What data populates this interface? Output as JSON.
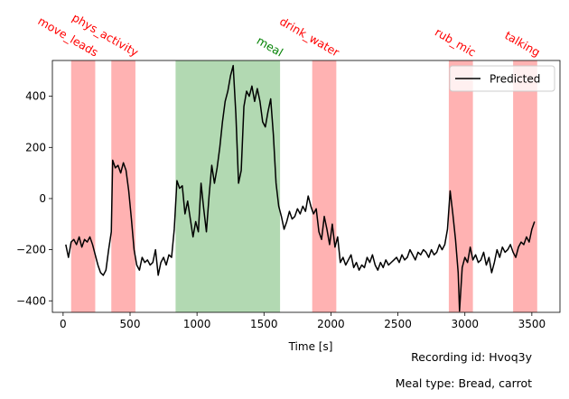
{
  "chart_data": {
    "type": "line",
    "xlabel": "Time [s]",
    "ylabel": "",
    "xlim": [
      -80,
      3710
    ],
    "ylim": [
      -445,
      540
    ],
    "x_ticks": [
      0,
      500,
      1000,
      1500,
      2000,
      2500,
      3000,
      3500
    ],
    "y_ticks": [
      -400,
      -200,
      0,
      200,
      400
    ],
    "grid": false,
    "legend": {
      "placement": "top-right",
      "entries": [
        {
          "label": "Predicted",
          "color": "#000000"
        }
      ]
    },
    "series": [
      {
        "name": "Predicted",
        "color": "#000000",
        "points": [
          [
            20,
            -180
          ],
          [
            40,
            -230
          ],
          [
            60,
            -170
          ],
          [
            80,
            -160
          ],
          [
            100,
            -180
          ],
          [
            120,
            -150
          ],
          [
            140,
            -190
          ],
          [
            160,
            -160
          ],
          [
            180,
            -170
          ],
          [
            200,
            -150
          ],
          [
            220,
            -180
          ],
          [
            240,
            -220
          ],
          [
            260,
            -260
          ],
          [
            280,
            -290
          ],
          [
            300,
            -300
          ],
          [
            320,
            -280
          ],
          [
            340,
            -200
          ],
          [
            360,
            -130
          ],
          [
            370,
            150
          ],
          [
            390,
            120
          ],
          [
            410,
            130
          ],
          [
            430,
            100
          ],
          [
            450,
            140
          ],
          [
            470,
            110
          ],
          [
            490,
            30
          ],
          [
            510,
            -80
          ],
          [
            530,
            -200
          ],
          [
            550,
            -260
          ],
          [
            570,
            -280
          ],
          [
            590,
            -230
          ],
          [
            610,
            -250
          ],
          [
            630,
            -240
          ],
          [
            650,
            -260
          ],
          [
            670,
            -250
          ],
          [
            690,
            -200
          ],
          [
            710,
            -300
          ],
          [
            730,
            -250
          ],
          [
            750,
            -230
          ],
          [
            770,
            -260
          ],
          [
            790,
            -220
          ],
          [
            810,
            -230
          ],
          [
            830,
            -120
          ],
          [
            850,
            70
          ],
          [
            870,
            40
          ],
          [
            890,
            50
          ],
          [
            910,
            -60
          ],
          [
            930,
            -10
          ],
          [
            950,
            -80
          ],
          [
            970,
            -150
          ],
          [
            990,
            -90
          ],
          [
            1010,
            -130
          ],
          [
            1030,
            60
          ],
          [
            1050,
            -40
          ],
          [
            1070,
            -130
          ],
          [
            1090,
            10
          ],
          [
            1110,
            130
          ],
          [
            1130,
            60
          ],
          [
            1150,
            120
          ],
          [
            1170,
            200
          ],
          [
            1190,
            300
          ],
          [
            1210,
            380
          ],
          [
            1230,
            420
          ],
          [
            1250,
            480
          ],
          [
            1270,
            520
          ],
          [
            1290,
            330
          ],
          [
            1310,
            60
          ],
          [
            1330,
            110
          ],
          [
            1350,
            360
          ],
          [
            1370,
            420
          ],
          [
            1390,
            400
          ],
          [
            1410,
            440
          ],
          [
            1430,
            380
          ],
          [
            1450,
            430
          ],
          [
            1470,
            380
          ],
          [
            1490,
            300
          ],
          [
            1510,
            280
          ],
          [
            1530,
            340
          ],
          [
            1550,
            390
          ],
          [
            1570,
            250
          ],
          [
            1590,
            60
          ],
          [
            1610,
            -30
          ],
          [
            1630,
            -70
          ],
          [
            1650,
            -120
          ],
          [
            1670,
            -90
          ],
          [
            1690,
            -50
          ],
          [
            1710,
            -80
          ],
          [
            1730,
            -70
          ],
          [
            1750,
            -40
          ],
          [
            1770,
            -60
          ],
          [
            1790,
            -30
          ],
          [
            1810,
            -50
          ],
          [
            1830,
            10
          ],
          [
            1850,
            -30
          ],
          [
            1870,
            -60
          ],
          [
            1890,
            -40
          ],
          [
            1910,
            -130
          ],
          [
            1930,
            -160
          ],
          [
            1950,
            -70
          ],
          [
            1970,
            -120
          ],
          [
            1990,
            -180
          ],
          [
            2010,
            -100
          ],
          [
            2030,
            -190
          ],
          [
            2050,
            -150
          ],
          [
            2070,
            -250
          ],
          [
            2090,
            -230
          ],
          [
            2110,
            -260
          ],
          [
            2130,
            -240
          ],
          [
            2150,
            -220
          ],
          [
            2170,
            -270
          ],
          [
            2190,
            -250
          ],
          [
            2210,
            -280
          ],
          [
            2230,
            -260
          ],
          [
            2250,
            -270
          ],
          [
            2270,
            -230
          ],
          [
            2290,
            -250
          ],
          [
            2310,
            -220
          ],
          [
            2330,
            -260
          ],
          [
            2350,
            -280
          ],
          [
            2370,
            -250
          ],
          [
            2390,
            -270
          ],
          [
            2410,
            -240
          ],
          [
            2430,
            -260
          ],
          [
            2450,
            -250
          ],
          [
            2470,
            -240
          ],
          [
            2490,
            -230
          ],
          [
            2510,
            -250
          ],
          [
            2530,
            -220
          ],
          [
            2550,
            -240
          ],
          [
            2570,
            -230
          ],
          [
            2590,
            -200
          ],
          [
            2610,
            -220
          ],
          [
            2630,
            -240
          ],
          [
            2650,
            -210
          ],
          [
            2670,
            -220
          ],
          [
            2690,
            -200
          ],
          [
            2710,
            -210
          ],
          [
            2730,
            -230
          ],
          [
            2750,
            -200
          ],
          [
            2770,
            -220
          ],
          [
            2790,
            -210
          ],
          [
            2810,
            -180
          ],
          [
            2830,
            -200
          ],
          [
            2850,
            -180
          ],
          [
            2870,
            -120
          ],
          [
            2890,
            30
          ],
          [
            2910,
            -60
          ],
          [
            2930,
            -160
          ],
          [
            2950,
            -290
          ],
          [
            2960,
            -440
          ],
          [
            2980,
            -270
          ],
          [
            3000,
            -230
          ],
          [
            3020,
            -250
          ],
          [
            3040,
            -190
          ],
          [
            3060,
            -240
          ],
          [
            3080,
            -220
          ],
          [
            3100,
            -250
          ],
          [
            3120,
            -240
          ],
          [
            3140,
            -210
          ],
          [
            3160,
            -260
          ],
          [
            3180,
            -230
          ],
          [
            3200,
            -290
          ],
          [
            3220,
            -250
          ],
          [
            3240,
            -200
          ],
          [
            3260,
            -230
          ],
          [
            3280,
            -190
          ],
          [
            3300,
            -210
          ],
          [
            3320,
            -200
          ],
          [
            3340,
            -180
          ],
          [
            3360,
            -210
          ],
          [
            3380,
            -230
          ],
          [
            3400,
            -190
          ],
          [
            3420,
            -170
          ],
          [
            3440,
            -180
          ],
          [
            3460,
            -150
          ],
          [
            3480,
            -170
          ],
          [
            3500,
            -120
          ],
          [
            3520,
            -90
          ]
        ]
      }
    ],
    "regions": [
      {
        "label": "move_leads",
        "start": 60,
        "end": 240,
        "color": "#ff7f7f",
        "type": "event"
      },
      {
        "label": "phys_activity",
        "start": 360,
        "end": 540,
        "color": "#ff7f7f",
        "type": "event"
      },
      {
        "label": "meal",
        "start": 840,
        "end": 1620,
        "color": "#7fbf7f",
        "type": "meal"
      },
      {
        "label": "drink_water",
        "start": 1860,
        "end": 2040,
        "color": "#ff7f7f",
        "type": "event"
      },
      {
        "label": "rub_mic",
        "start": 2880,
        "end": 3060,
        "color": "#ff7f7f",
        "type": "event"
      },
      {
        "label": "talking",
        "start": 3360,
        "end": 3540,
        "color": "#ff7f7f",
        "type": "event"
      }
    ],
    "annotation_colors": {
      "event": "#ff0000",
      "meal": "#008000"
    }
  },
  "footer": {
    "recording": "Recording id: Hvoq3y",
    "meal_type": "Meal type: Bread, carrot"
  }
}
